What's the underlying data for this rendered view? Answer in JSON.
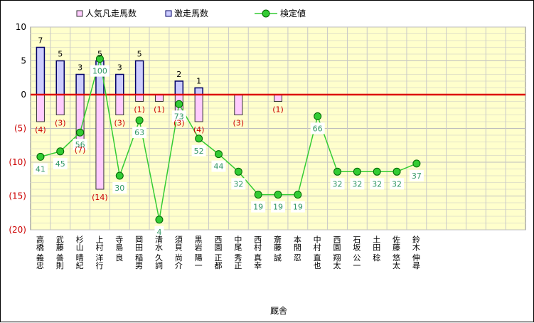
{
  "chart_data": {
    "type": "bar",
    "xlabel": "厩舎",
    "ylim": [
      -20,
      10
    ],
    "y_ticks": [
      10,
      5,
      0,
      -5,
      -10,
      -15,
      -20
    ],
    "y_tick_labels": [
      "10",
      "5",
      "0",
      "(5)",
      "(10)",
      "(15)",
      "(20)"
    ],
    "categories": [
      "高橋 義忠",
      "武藤 善則",
      "杉山 晴紀",
      "上村 洋行",
      "寺島 良",
      "岡田 稲男",
      "清水 久詞",
      "須貝 尚介",
      "黒岩 陽一",
      "西園 正都",
      "中尾 秀正",
      "西村 真幸",
      "斎藤 誠",
      "本間 忍",
      "中村 直也",
      "西園 翔太",
      "石坂 公一",
      "土田 稔",
      "佐藤 悠太",
      "鈴木 伸尋"
    ],
    "series": [
      {
        "name": "人気凡走馬数",
        "kind": "bar",
        "color": "#ffccff",
        "values": [
          -4,
          -3,
          -7,
          -14,
          -3,
          -1,
          -1,
          -3,
          -4,
          0,
          -3,
          0,
          -1,
          0,
          0,
          0,
          0,
          0,
          0,
          0
        ],
        "labels": [
          "(4)",
          "(3)",
          "(7)",
          "(14)",
          "(3)",
          "(1)",
          "(1)",
          "(3)",
          "(4)",
          "",
          "(3)",
          "",
          "(1)",
          "",
          "",
          "",
          "",
          "",
          "",
          ""
        ]
      },
      {
        "name": "激走馬数",
        "kind": "bar",
        "color": "#ccccff",
        "values": [
          7,
          5,
          3,
          5,
          3,
          5,
          0,
          2,
          1,
          0,
          0,
          0,
          0,
          0,
          0,
          0,
          0,
          0,
          0,
          0
        ],
        "labels": [
          "7",
          "5",
          "3",
          "5",
          "3",
          "5",
          "",
          "2",
          "1",
          "",
          "",
          "",
          "",
          "",
          "",
          "",
          "",
          "",
          "",
          ""
        ]
      },
      {
        "name": "検定値",
        "kind": "line",
        "color": "#33cc33",
        "scaled_values": [
          -9.2,
          -8.4,
          -5.6,
          5.3,
          -12,
          -3.8,
          -18.5,
          -1.4,
          -6.5,
          -8.8,
          -11.4,
          -14.8,
          -14.8,
          -14.8,
          -3.2,
          -11.4,
          -11.4,
          -11.4,
          -11.4,
          -10.2
        ],
        "labels": [
          "41",
          "45",
          "56",
          "100",
          "30",
          "63",
          "4",
          "73",
          "52",
          "44",
          "32",
          "19",
          "19",
          "19",
          "66",
          "32",
          "32",
          "32",
          "32",
          "37"
        ]
      }
    ],
    "zero_line_color": "#dd0000",
    "plot_bg": "#ffffcc",
    "grid": true,
    "legend_position": "top"
  }
}
